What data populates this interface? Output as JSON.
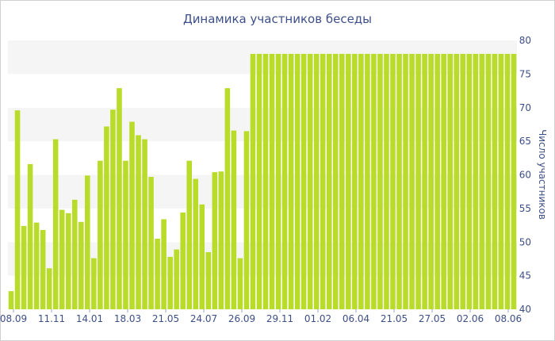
{
  "chart_data": {
    "type": "bar",
    "title": "Динамика участников беседы",
    "xlabel": "",
    "ylabel": "Число участников",
    "ylim": [
      40,
      80
    ],
    "y_ticks": [
      "40",
      "45",
      "50",
      "55",
      "60",
      "65",
      "70",
      "75",
      "80"
    ],
    "x_tick_labels": [
      "08.09",
      "11.11",
      "14.01",
      "18.03",
      "21.05",
      "24.07",
      "26.09",
      "29.11",
      "01.02",
      "06.04",
      "21.05",
      "27.05",
      "02.06",
      "08.06"
    ],
    "grid": true,
    "y_axis_position": "right",
    "bar_color": "#b9dc2a",
    "values": [
      42.7,
      69.6,
      52.4,
      61.6,
      52.9,
      51.8,
      46.1,
      65.3,
      54.8,
      54.3,
      56.3,
      53.0,
      59.9,
      47.6,
      62.1,
      67.2,
      69.7,
      72.9,
      62.1,
      67.9,
      65.9,
      65.3,
      59.7,
      50.5,
      53.4,
      47.8,
      48.9,
      54.4,
      62.1,
      59.4,
      55.6,
      48.5,
      60.4,
      60.5,
      72.9,
      66.6,
      47.6,
      66.5,
      78,
      78,
      78,
      78,
      78,
      78,
      78,
      78,
      78,
      78,
      78,
      78,
      78,
      78,
      78,
      78,
      78,
      78,
      78,
      78,
      78,
      78,
      78,
      78,
      78,
      78,
      78,
      78,
      78,
      78,
      78,
      78,
      78,
      78,
      78,
      78,
      78,
      78,
      78,
      78,
      78,
      78
    ]
  }
}
